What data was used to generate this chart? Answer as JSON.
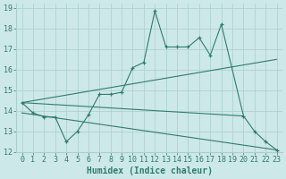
{
  "xlabel": "Humidex (Indice chaleur)",
  "background_color": "#cde8e8",
  "grid_color": "#aacece",
  "line_color": "#2e7d6e",
  "xlim": [
    -0.5,
    23.5
  ],
  "ylim": [
    12,
    19.2
  ],
  "yticks": [
    12,
    13,
    14,
    15,
    16,
    17,
    18,
    19
  ],
  "xticks": [
    0,
    1,
    2,
    3,
    4,
    5,
    6,
    7,
    8,
    9,
    10,
    11,
    12,
    13,
    14,
    15,
    16,
    17,
    18,
    19,
    20,
    21,
    22,
    23
  ],
  "line1_x": [
    0,
    1,
    2,
    3,
    4,
    5,
    6,
    7,
    8,
    9,
    10,
    11,
    12,
    13,
    14,
    15,
    16,
    17,
    18,
    20,
    21,
    22,
    23
  ],
  "line1_y": [
    14.4,
    13.9,
    13.7,
    13.7,
    12.5,
    13.0,
    13.8,
    14.8,
    14.8,
    14.9,
    16.1,
    16.35,
    18.85,
    17.1,
    17.1,
    17.1,
    17.55,
    16.7,
    18.2,
    13.75,
    13.0,
    12.5,
    12.1
  ],
  "line2_x": [
    0,
    20
  ],
  "line2_y": [
    14.4,
    13.75
  ],
  "line3_x": [
    0,
    23
  ],
  "line3_y": [
    14.4,
    16.5
  ],
  "line4_x": [
    0,
    23
  ],
  "line4_y": [
    13.9,
    12.1
  ],
  "font_size_label": 7,
  "font_size_tick": 6
}
